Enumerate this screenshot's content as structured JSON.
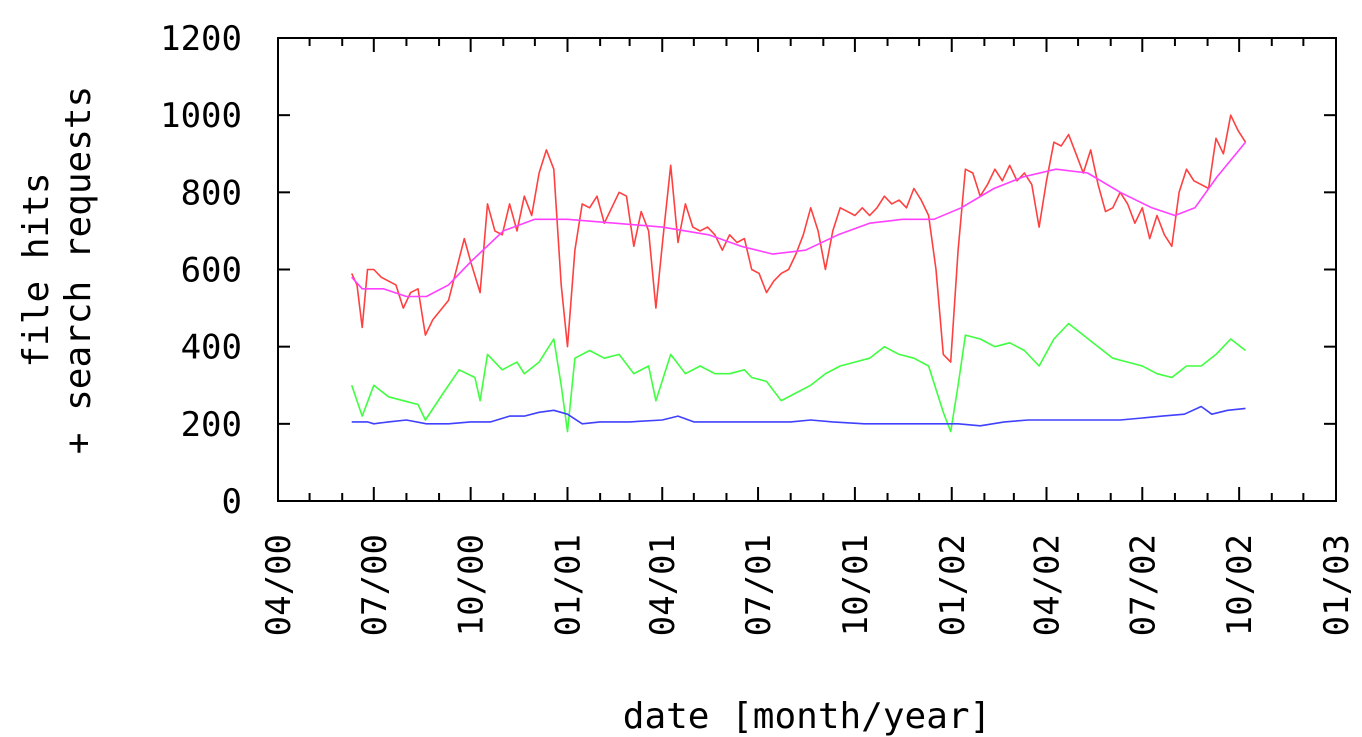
{
  "chart_data": {
    "type": "line",
    "xlabel": "date [month/year]",
    "ylabel_lines": [
      "file hits",
      "+ search requests"
    ],
    "ylim": [
      0,
      1200
    ],
    "y_ticks": [
      0,
      200,
      400,
      600,
      800,
      1000,
      1200
    ],
    "xlim": [
      "2000-04-01",
      "2003-01-01"
    ],
    "x_ticks": [
      {
        "date": "2000-04-01",
        "label": "04/00"
      },
      {
        "date": "2000-07-01",
        "label": "07/00"
      },
      {
        "date": "2000-10-01",
        "label": "10/00"
      },
      {
        "date": "2001-01-01",
        "label": "01/01"
      },
      {
        "date": "2001-04-01",
        "label": "04/01"
      },
      {
        "date": "2001-07-01",
        "label": "07/01"
      },
      {
        "date": "2001-10-01",
        "label": "10/01"
      },
      {
        "date": "2002-01-01",
        "label": "01/02"
      },
      {
        "date": "2002-04-01",
        "label": "04/02"
      },
      {
        "date": "2002-07-01",
        "label": "07/02"
      },
      {
        "date": "2002-10-01",
        "label": "10/02"
      },
      {
        "date": "2003-01-01",
        "label": "01/03"
      }
    ],
    "grid": false,
    "series": [
      {
        "color": "#ff4040",
        "points": [
          [
            "2000-06-10",
            590
          ],
          [
            "2000-06-15",
            560
          ],
          [
            "2000-06-20",
            450
          ],
          [
            "2000-06-25",
            600
          ],
          [
            "2000-07-01",
            600
          ],
          [
            "2000-07-08",
            580
          ],
          [
            "2000-07-15",
            570
          ],
          [
            "2000-07-22",
            560
          ],
          [
            "2000-07-29",
            500
          ],
          [
            "2000-08-05",
            540
          ],
          [
            "2000-08-12",
            550
          ],
          [
            "2000-08-19",
            430
          ],
          [
            "2000-08-26",
            470
          ],
          [
            "2000-09-10",
            520
          ],
          [
            "2000-09-25",
            680
          ],
          [
            "2000-10-01",
            620
          ],
          [
            "2000-10-10",
            540
          ],
          [
            "2000-10-17",
            770
          ],
          [
            "2000-10-24",
            700
          ],
          [
            "2000-10-31",
            690
          ],
          [
            "2000-11-07",
            770
          ],
          [
            "2000-11-14",
            700
          ],
          [
            "2000-11-21",
            790
          ],
          [
            "2000-11-28",
            740
          ],
          [
            "2000-12-05",
            850
          ],
          [
            "2000-12-12",
            910
          ],
          [
            "2000-12-19",
            860
          ],
          [
            "2000-12-26",
            560
          ],
          [
            "2001-01-01",
            400
          ],
          [
            "2001-01-08",
            650
          ],
          [
            "2001-01-15",
            770
          ],
          [
            "2001-01-22",
            760
          ],
          [
            "2001-01-29",
            790
          ],
          [
            "2001-02-05",
            720
          ],
          [
            "2001-02-12",
            760
          ],
          [
            "2001-02-19",
            800
          ],
          [
            "2001-02-26",
            790
          ],
          [
            "2001-03-05",
            660
          ],
          [
            "2001-03-12",
            750
          ],
          [
            "2001-03-19",
            700
          ],
          [
            "2001-03-26",
            500
          ],
          [
            "2001-04-02",
            690
          ],
          [
            "2001-04-09",
            870
          ],
          [
            "2001-04-16",
            670
          ],
          [
            "2001-04-23",
            770
          ],
          [
            "2001-04-30",
            710
          ],
          [
            "2001-05-07",
            700
          ],
          [
            "2001-05-14",
            710
          ],
          [
            "2001-05-21",
            690
          ],
          [
            "2001-05-28",
            650
          ],
          [
            "2001-06-04",
            690
          ],
          [
            "2001-06-11",
            670
          ],
          [
            "2001-06-18",
            680
          ],
          [
            "2001-06-25",
            600
          ],
          [
            "2001-07-02",
            590
          ],
          [
            "2001-07-09",
            540
          ],
          [
            "2001-07-16",
            570
          ],
          [
            "2001-07-23",
            590
          ],
          [
            "2001-07-30",
            600
          ],
          [
            "2001-08-06",
            640
          ],
          [
            "2001-08-13",
            690
          ],
          [
            "2001-08-20",
            760
          ],
          [
            "2001-08-27",
            700
          ],
          [
            "2001-09-03",
            600
          ],
          [
            "2001-09-10",
            700
          ],
          [
            "2001-09-17",
            760
          ],
          [
            "2001-09-24",
            750
          ],
          [
            "2001-10-01",
            740
          ],
          [
            "2001-10-08",
            760
          ],
          [
            "2001-10-15",
            740
          ],
          [
            "2001-10-22",
            760
          ],
          [
            "2001-10-29",
            790
          ],
          [
            "2001-11-05",
            770
          ],
          [
            "2001-11-12",
            780
          ],
          [
            "2001-11-19",
            760
          ],
          [
            "2001-11-26",
            810
          ],
          [
            "2001-12-03",
            780
          ],
          [
            "2001-12-10",
            740
          ],
          [
            "2001-12-17",
            600
          ],
          [
            "2001-12-24",
            380
          ],
          [
            "2001-12-31",
            360
          ],
          [
            "2002-01-07",
            650
          ],
          [
            "2002-01-14",
            860
          ],
          [
            "2002-01-21",
            850
          ],
          [
            "2002-01-28",
            790
          ],
          [
            "2002-02-04",
            820
          ],
          [
            "2002-02-11",
            860
          ],
          [
            "2002-02-18",
            830
          ],
          [
            "2002-02-25",
            870
          ],
          [
            "2002-03-04",
            830
          ],
          [
            "2002-03-11",
            850
          ],
          [
            "2002-03-18",
            820
          ],
          [
            "2002-03-25",
            710
          ],
          [
            "2002-04-01",
            830
          ],
          [
            "2002-04-08",
            930
          ],
          [
            "2002-04-15",
            920
          ],
          [
            "2002-04-22",
            950
          ],
          [
            "2002-04-29",
            900
          ],
          [
            "2002-05-06",
            850
          ],
          [
            "2002-05-13",
            910
          ],
          [
            "2002-05-20",
            820
          ],
          [
            "2002-05-27",
            750
          ],
          [
            "2002-06-03",
            760
          ],
          [
            "2002-06-10",
            800
          ],
          [
            "2002-06-17",
            770
          ],
          [
            "2002-06-24",
            720
          ],
          [
            "2002-07-01",
            760
          ],
          [
            "2002-07-08",
            680
          ],
          [
            "2002-07-15",
            740
          ],
          [
            "2002-07-22",
            690
          ],
          [
            "2002-07-29",
            660
          ],
          [
            "2002-08-05",
            800
          ],
          [
            "2002-08-12",
            860
          ],
          [
            "2002-08-19",
            830
          ],
          [
            "2002-08-26",
            820
          ],
          [
            "2002-09-02",
            810
          ],
          [
            "2002-09-09",
            940
          ],
          [
            "2002-09-16",
            900
          ],
          [
            "2002-09-23",
            1000
          ],
          [
            "2002-09-30",
            960
          ],
          [
            "2002-10-07",
            930
          ]
        ]
      },
      {
        "color": "#ff40ff",
        "points": [
          [
            "2000-06-10",
            580
          ],
          [
            "2000-06-20",
            550
          ],
          [
            "2000-07-10",
            550
          ],
          [
            "2000-08-01",
            530
          ],
          [
            "2000-08-20",
            530
          ],
          [
            "2000-09-10",
            560
          ],
          [
            "2000-10-01",
            620
          ],
          [
            "2000-11-01",
            700
          ],
          [
            "2000-12-01",
            730
          ],
          [
            "2001-01-01",
            730
          ],
          [
            "2001-02-15",
            720
          ],
          [
            "2001-04-01",
            710
          ],
          [
            "2001-05-15",
            690
          ],
          [
            "2001-06-15",
            660
          ],
          [
            "2001-07-15",
            640
          ],
          [
            "2001-08-15",
            650
          ],
          [
            "2001-09-15",
            690
          ],
          [
            "2001-10-15",
            720
          ],
          [
            "2001-11-15",
            730
          ],
          [
            "2001-12-15",
            730
          ],
          [
            "2002-01-10",
            760
          ],
          [
            "2002-02-10",
            810
          ],
          [
            "2002-03-10",
            840
          ],
          [
            "2002-04-10",
            860
          ],
          [
            "2002-05-10",
            850
          ],
          [
            "2002-06-10",
            800
          ],
          [
            "2002-07-10",
            760
          ],
          [
            "2002-08-01",
            740
          ],
          [
            "2002-08-20",
            760
          ],
          [
            "2002-09-10",
            840
          ],
          [
            "2002-10-07",
            930
          ]
        ]
      },
      {
        "color": "#40ff40",
        "points": [
          [
            "2000-06-10",
            300
          ],
          [
            "2000-06-20",
            220
          ],
          [
            "2000-07-01",
            300
          ],
          [
            "2000-07-15",
            270
          ],
          [
            "2000-07-29",
            260
          ],
          [
            "2000-08-12",
            250
          ],
          [
            "2000-08-19",
            210
          ],
          [
            "2000-09-05",
            280
          ],
          [
            "2000-09-20",
            340
          ],
          [
            "2000-10-05",
            320
          ],
          [
            "2000-10-10",
            260
          ],
          [
            "2000-10-17",
            380
          ],
          [
            "2000-10-31",
            340
          ],
          [
            "2000-11-14",
            360
          ],
          [
            "2000-11-21",
            330
          ],
          [
            "2000-12-05",
            360
          ],
          [
            "2000-12-19",
            420
          ],
          [
            "2000-12-26",
            300
          ],
          [
            "2001-01-01",
            180
          ],
          [
            "2001-01-08",
            370
          ],
          [
            "2001-01-22",
            390
          ],
          [
            "2001-02-05",
            370
          ],
          [
            "2001-02-19",
            380
          ],
          [
            "2001-03-05",
            330
          ],
          [
            "2001-03-19",
            350
          ],
          [
            "2001-03-26",
            260
          ],
          [
            "2001-04-09",
            380
          ],
          [
            "2001-04-23",
            330
          ],
          [
            "2001-05-07",
            350
          ],
          [
            "2001-05-21",
            330
          ],
          [
            "2001-06-04",
            330
          ],
          [
            "2001-06-18",
            340
          ],
          [
            "2001-06-25",
            320
          ],
          [
            "2001-07-09",
            310
          ],
          [
            "2001-07-23",
            260
          ],
          [
            "2001-08-06",
            280
          ],
          [
            "2001-08-20",
            300
          ],
          [
            "2001-09-03",
            330
          ],
          [
            "2001-09-17",
            350
          ],
          [
            "2001-10-01",
            360
          ],
          [
            "2001-10-15",
            370
          ],
          [
            "2001-10-29",
            400
          ],
          [
            "2001-11-12",
            380
          ],
          [
            "2001-11-26",
            370
          ],
          [
            "2001-12-10",
            350
          ],
          [
            "2001-12-24",
            230
          ],
          [
            "2001-12-31",
            180
          ],
          [
            "2002-01-07",
            300
          ],
          [
            "2002-01-14",
            430
          ],
          [
            "2002-01-28",
            420
          ],
          [
            "2002-02-11",
            400
          ],
          [
            "2002-02-25",
            410
          ],
          [
            "2002-03-11",
            390
          ],
          [
            "2002-03-25",
            350
          ],
          [
            "2002-04-08",
            420
          ],
          [
            "2002-04-22",
            460
          ],
          [
            "2002-05-06",
            430
          ],
          [
            "2002-05-20",
            400
          ],
          [
            "2002-06-03",
            370
          ],
          [
            "2002-06-17",
            360
          ],
          [
            "2002-07-01",
            350
          ],
          [
            "2002-07-15",
            330
          ],
          [
            "2002-07-29",
            320
          ],
          [
            "2002-08-12",
            350
          ],
          [
            "2002-08-26",
            350
          ],
          [
            "2002-09-09",
            380
          ],
          [
            "2002-09-23",
            420
          ],
          [
            "2002-10-07",
            390
          ]
        ]
      },
      {
        "color": "#4040ff",
        "points": [
          [
            "2000-06-10",
            205
          ],
          [
            "2000-06-25",
            205
          ],
          [
            "2000-07-01",
            200
          ],
          [
            "2000-07-15",
            205
          ],
          [
            "2000-08-01",
            210
          ],
          [
            "2000-08-20",
            200
          ],
          [
            "2000-09-10",
            200
          ],
          [
            "2000-10-01",
            205
          ],
          [
            "2000-10-20",
            205
          ],
          [
            "2000-11-07",
            220
          ],
          [
            "2000-11-21",
            220
          ],
          [
            "2000-12-05",
            230
          ],
          [
            "2000-12-19",
            235
          ],
          [
            "2001-01-01",
            225
          ],
          [
            "2001-01-15",
            200
          ],
          [
            "2001-02-01",
            205
          ],
          [
            "2001-03-01",
            205
          ],
          [
            "2001-04-01",
            210
          ],
          [
            "2001-04-16",
            220
          ],
          [
            "2001-05-01",
            205
          ],
          [
            "2001-06-01",
            205
          ],
          [
            "2001-07-01",
            205
          ],
          [
            "2001-08-01",
            205
          ],
          [
            "2001-08-20",
            210
          ],
          [
            "2001-09-10",
            205
          ],
          [
            "2001-10-10",
            200
          ],
          [
            "2001-11-10",
            200
          ],
          [
            "2001-12-10",
            200
          ],
          [
            "2002-01-07",
            200
          ],
          [
            "2002-01-28",
            195
          ],
          [
            "2002-02-20",
            205
          ],
          [
            "2002-03-15",
            210
          ],
          [
            "2002-04-10",
            210
          ],
          [
            "2002-05-10",
            210
          ],
          [
            "2002-06-10",
            210
          ],
          [
            "2002-07-01",
            215
          ],
          [
            "2002-07-20",
            220
          ],
          [
            "2002-08-10",
            225
          ],
          [
            "2002-08-26",
            245
          ],
          [
            "2002-09-05",
            225
          ],
          [
            "2002-09-20",
            235
          ],
          [
            "2002-10-07",
            240
          ]
        ]
      }
    ]
  }
}
